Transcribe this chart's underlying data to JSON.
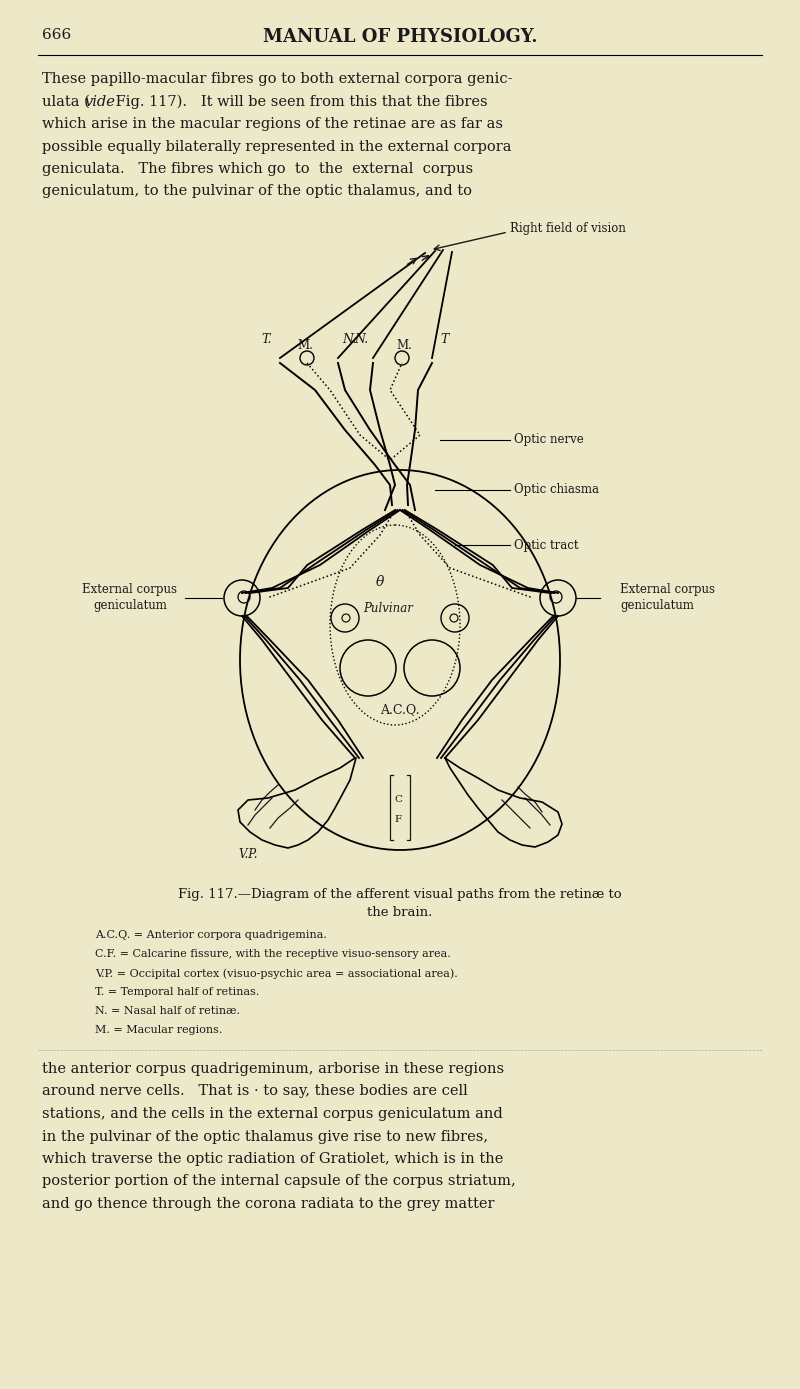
{
  "bg_color": "#ede8c8",
  "text_color": "#1a1a1a",
  "page_number": "666",
  "header_title": "MANUAL OF PHYSIOLOGY.",
  "top_paragraph_lines": [
    "These papillo-macular fibres go to both external corpora genic-",
    "ulata (vide Fig. 117).   It will be seen from this that the fibres",
    "which arise in the macular regions of the retinae are as far as",
    "possible equally bilaterally represented in the external corpora",
    "geniculata.   The fibres which go  to  the  external  corpus",
    "geniculatum, to the pulvinar of the optic thalamus, and to"
  ],
  "bottom_paragraph_lines": [
    "the anterior corpus quadrigeminum, arborise in these regions",
    "around nerve cells.   That is · to say, these bodies are cell",
    "stations, and the cells in the external corpus geniculatum and",
    "in the pulvinar of the optic thalamus give rise to new fibres,",
    "which traverse the optic radiation of Gratiolet, which is in the",
    "posterior portion of the internal capsule of the corpus striatum,",
    "and go thence through the corona radiata to the grey matter"
  ],
  "fig_caption_line1": "Fig. 117.—Diagram of the afferent visual paths from the retinæ to",
  "fig_caption_line2": "the brain.",
  "legend_lines": [
    "A.C.Q. = Anterior corpora quadrigemina.",
    "C.F. = Calcarine fissure, with the receptive visuo-sensory area.",
    "V.P. = Occipital cortex (visuo-psychic area = associational area).",
    "T. = Temporal half of retinas.",
    "N. = Nasal half of retinæ.",
    "M. = Macular regions."
  ]
}
